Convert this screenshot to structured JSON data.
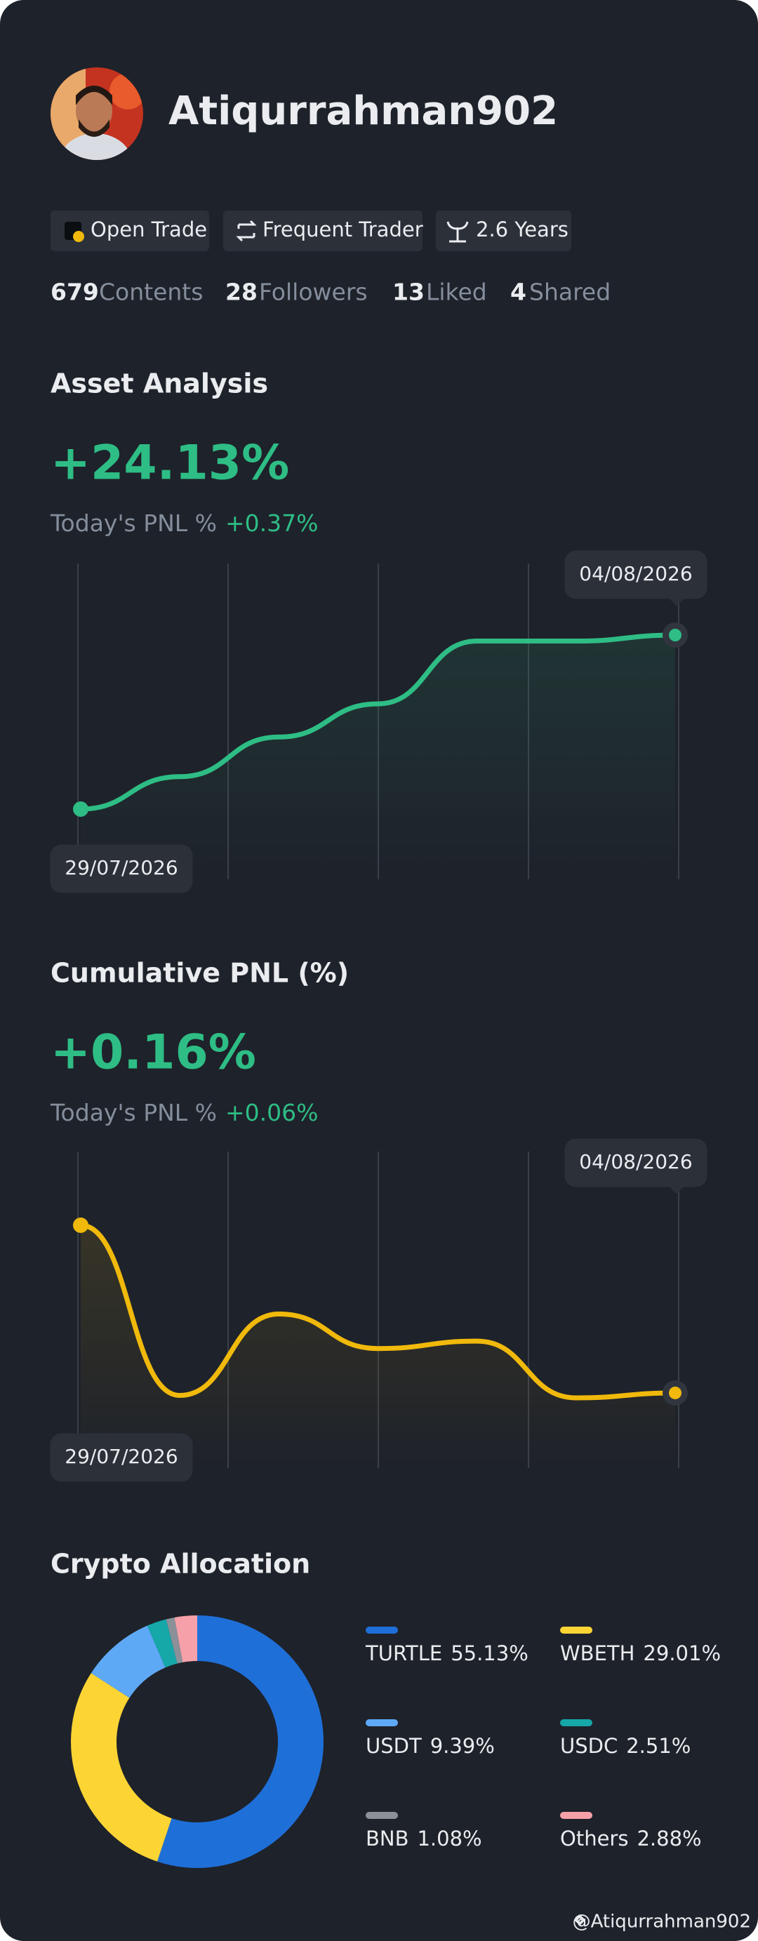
{
  "profile": {
    "name": "Atiqurrahman902",
    "badges": [
      "Open Trade",
      "Frequent Trader",
      "2.6 Years"
    ],
    "stats": [
      {
        "value": 679,
        "label": "Contents"
      },
      {
        "value": 28,
        "label": "Followers"
      },
      {
        "value": 13,
        "label": "Liked"
      },
      {
        "value": 4,
        "label": "Shared"
      }
    ]
  },
  "chart_data": [
    {
      "type": "line",
      "title": "Asset Analysis",
      "headline": "+24.13%",
      "today_label": "Today's PNL %",
      "today_value": "+0.37%",
      "categories": [
        "29/07/2026",
        null,
        null,
        null,
        null,
        null,
        "04/08/2026"
      ],
      "series": [
        {
          "color": "#2ebd85",
          "values": [
            0,
            4.5,
            10,
            14.6,
            23.3,
            23.3,
            24.13
          ]
        }
      ]
    },
    {
      "type": "line",
      "title": "Cumulative PNL (%)",
      "headline": "+0.16%",
      "today_label": "Today's PNL %",
      "today_value": "+0.06%",
      "categories": [
        "29/07/2026",
        null,
        null,
        null,
        null,
        null,
        "04/08/2026"
      ],
      "series": [
        {
          "color": "#f0b90b",
          "values": [
            0.5,
            0.155,
            0.32,
            0.25,
            0.265,
            0.15,
            0.16
          ]
        }
      ]
    },
    {
      "type": "pie",
      "title": "Crypto Allocation",
      "categories": [
        "TURTLE",
        "WBETH",
        "USDT",
        "USDC",
        "BNB",
        "Others"
      ],
      "values": [
        55.13,
        29.01,
        9.39,
        2.51,
        1.08,
        2.88
      ],
      "value_labels": [
        "55.13%",
        "29.01%",
        "9.39%",
        "2.51%",
        "1.08%",
        "2.88%"
      ],
      "colors": [
        "#1f6fd8",
        "#fcd535",
        "#5ea9f6",
        "#16a7a9",
        "#8b9099",
        "#f6a1a9"
      ]
    }
  ],
  "footer": "@Atiqurrahman902"
}
